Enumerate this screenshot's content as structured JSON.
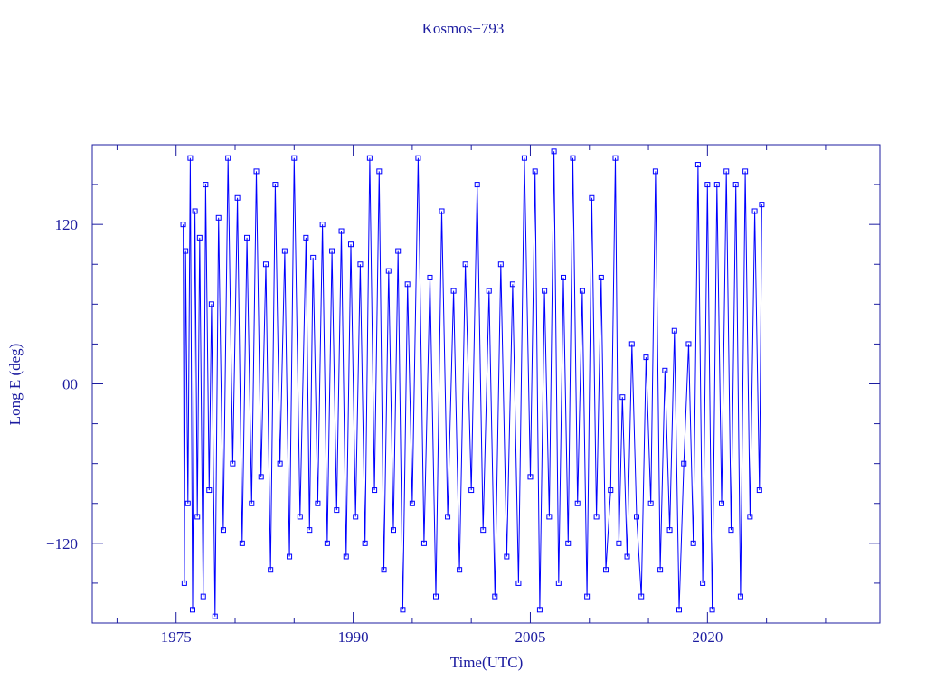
{
  "chart_data": {
    "type": "line",
    "title": "Kosmos−793",
    "xlabel": "Time(UTC)",
    "ylabel": "Long E (deg)",
    "color": "#0000ff",
    "axis_color": "#1c1ca0",
    "xlim": [
      1967.9,
      2034.6
    ],
    "ylim": [
      -180,
      180
    ],
    "xticks": [
      1975,
      1990,
      2005,
      2020
    ],
    "xminorticks": [
      1970,
      1980,
      1985,
      1995,
      2000,
      2010,
      2015,
      2025,
      2030
    ],
    "yticks": [
      {
        "value": 120,
        "label": "120"
      },
      {
        "value": 0,
        "label": "00"
      },
      {
        "value": -120,
        "label": "−120"
      }
    ],
    "yminorticks": [
      -150,
      -90,
      -60,
      -30,
      30,
      60,
      90,
      150
    ],
    "x": [
      1975.6,
      1975.7,
      1975.8,
      1976.0,
      1976.2,
      1976.4,
      1976.6,
      1976.8,
      1977.0,
      1977.3,
      1977.5,
      1977.8,
      1978.0,
      1978.3,
      1978.6,
      1979.0,
      1979.4,
      1979.8,
      1980.2,
      1980.6,
      1981.0,
      1981.4,
      1981.8,
      1982.2,
      1982.6,
      1983.0,
      1983.4,
      1983.8,
      1984.2,
      1984.6,
      1985.0,
      1985.5,
      1986.0,
      1986.3,
      1986.6,
      1987.0,
      1987.4,
      1987.8,
      1988.2,
      1988.6,
      1989.0,
      1989.4,
      1989.8,
      1990.2,
      1990.6,
      1991.0,
      1991.4,
      1991.8,
      1992.2,
      1992.6,
      1993.0,
      1993.4,
      1993.8,
      1994.2,
      1994.6,
      1995.0,
      1995.5,
      1996.0,
      1996.5,
      1997.0,
      1997.5,
      1998.0,
      1998.5,
      1999.0,
      1999.5,
      2000.0,
      2000.5,
      2001.0,
      2001.5,
      2002.0,
      2002.5,
      2003.0,
      2003.5,
      2004.0,
      2004.5,
      2005.0,
      2005.4,
      2005.8,
      2006.2,
      2006.6,
      2007.0,
      2007.4,
      2007.8,
      2008.2,
      2008.6,
      2009.0,
      2009.4,
      2009.8,
      2010.2,
      2010.6,
      2011.0,
      2011.4,
      2011.8,
      2012.2,
      2012.5,
      2012.8,
      2013.2,
      2013.6,
      2014.0,
      2014.4,
      2014.8,
      2015.2,
      2015.6,
      2016.0,
      2016.4,
      2016.8,
      2017.2,
      2017.6,
      2018.0,
      2018.4,
      2018.8,
      2019.2,
      2019.6,
      2020.0,
      2020.4,
      2020.8,
      2021.2,
      2021.6,
      2022.0,
      2022.4,
      2022.8,
      2023.2,
      2023.6,
      2024.0,
      2024.4,
      2024.6
    ],
    "values": [
      120,
      -150,
      100,
      -90,
      170,
      -170,
      130,
      -100,
      110,
      -160,
      150,
      -80,
      60,
      -175,
      125,
      -110,
      170,
      -60,
      140,
      -120,
      110,
      -90,
      160,
      -70,
      90,
      -140,
      150,
      -60,
      100,
      -130,
      170,
      -100,
      110,
      -110,
      95,
      -90,
      120,
      -120,
      100,
      -95,
      115,
      -130,
      105,
      -100,
      90,
      -120,
      170,
      -80,
      160,
      -140,
      85,
      -110,
      100,
      -170,
      75,
      -90,
      170,
      -120,
      80,
      -160,
      130,
      -100,
      70,
      -140,
      90,
      -80,
      150,
      -110,
      70,
      -160,
      90,
      -130,
      75,
      -150,
      170,
      -70,
      160,
      -170,
      70,
      -100,
      175,
      -150,
      80,
      -120,
      170,
      -90,
      70,
      -160,
      140,
      -100,
      80,
      -140,
      -80,
      170,
      -120,
      -10,
      -130,
      30,
      -100,
      -160,
      20,
      -90,
      160,
      -140,
      10,
      -110,
      40,
      -170,
      -60,
      30,
      -120,
      165,
      -150,
      150,
      -170,
      150,
      -90,
      160,
      -110,
      150,
      -160,
      160,
      -100,
      130,
      -80,
      135
    ]
  }
}
